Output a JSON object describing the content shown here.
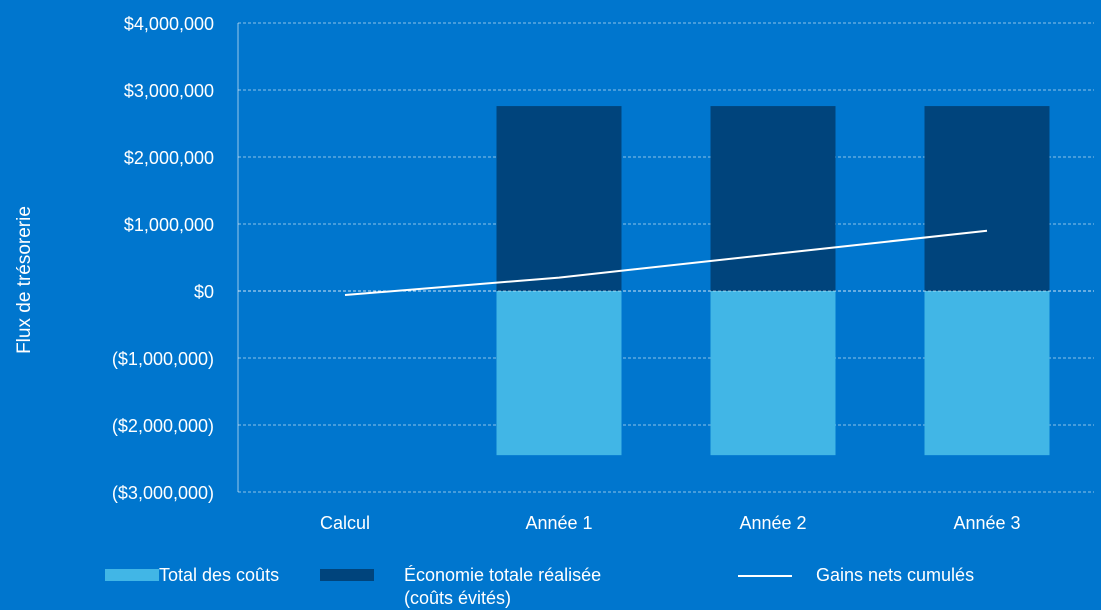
{
  "chart_data": {
    "type": "bar",
    "stacked": true,
    "ylabel": "Flux de trésorerie",
    "categories": [
      "Calcul",
      "Année 1",
      "Année 2",
      "Année 3"
    ],
    "ylim": [
      -3000000,
      4000000
    ],
    "yticks": [
      4000000,
      3000000,
      2000000,
      1000000,
      0,
      -1000000,
      -2000000,
      -3000000
    ],
    "ytick_labels": [
      "$4,000,000",
      "$3,000,000",
      "$2,000,000",
      "$1,000,000",
      "$0",
      "($1,000,000)",
      "($2,000,000)",
      "($3,000,000)"
    ],
    "grid": true,
    "legend_position": "bottom",
    "series": [
      {
        "name": "Total des coûts",
        "kind": "bar",
        "color": "#41b6e6",
        "values": [
          0,
          -2450000,
          -2450000,
          -2450000
        ]
      },
      {
        "name_lines": [
          "Économie totale réalisée",
          "(coûts évités)"
        ],
        "kind": "bar",
        "color": "#00447c",
        "values": [
          0,
          2760000,
          2760000,
          2760000
        ]
      },
      {
        "name": "Gains nets cumulés",
        "kind": "line",
        "color": "#ffffff",
        "values": [
          -60000,
          200000,
          550000,
          900000
        ]
      }
    ]
  }
}
